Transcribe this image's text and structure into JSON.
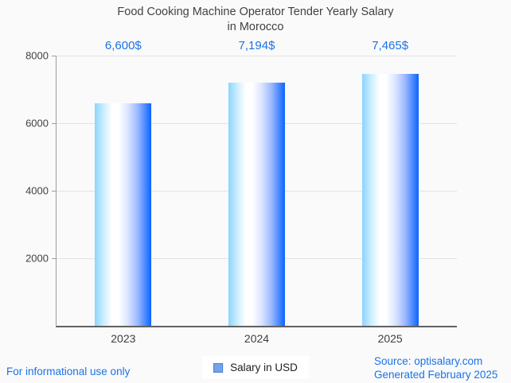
{
  "page": {
    "background": "#fafafa"
  },
  "chart_data": {
    "type": "bar",
    "title": "Food Cooking Machine Operator Tender Yearly Salary in Morocco",
    "title_lines": [
      "Food Cooking Machine Operator Tender Yearly Salary",
      "in Morocco"
    ],
    "categories": [
      "2023",
      "2024",
      "2025"
    ],
    "series": [
      {
        "name": "Salary in USD",
        "values": [
          6600,
          7194,
          7465
        ],
        "value_labels": [
          "6,600$",
          "7,194$",
          "7,465$"
        ]
      }
    ],
    "xlabel": "",
    "ylabel": "",
    "ylim": [
      0,
      8000
    ],
    "yticks": [
      2000,
      4000,
      6000,
      8000
    ],
    "grid": true,
    "legend": {
      "label": "Salary in USD",
      "position": "bottom-center"
    },
    "colors": {
      "value_label": "#1a73e8",
      "bar_gradient_left": "#8bd5fc",
      "bar_gradient_mid": "#ffffff",
      "bar_gradient_right": "#0b64ff",
      "legend_swatch": "#73a3e8",
      "legend_swatch_border": "#4c7fd6",
      "grid_line": "#e3e3e3",
      "axis_line": "#616161",
      "title_text": "#424242",
      "tick_text": "#3c4043",
      "background": "#fafafa"
    }
  },
  "footer": {
    "disclaimer": "For informational use only",
    "source": "Source: optisalary.com",
    "generated": "Generated February 2025",
    "link_color": "#1a73e8"
  }
}
